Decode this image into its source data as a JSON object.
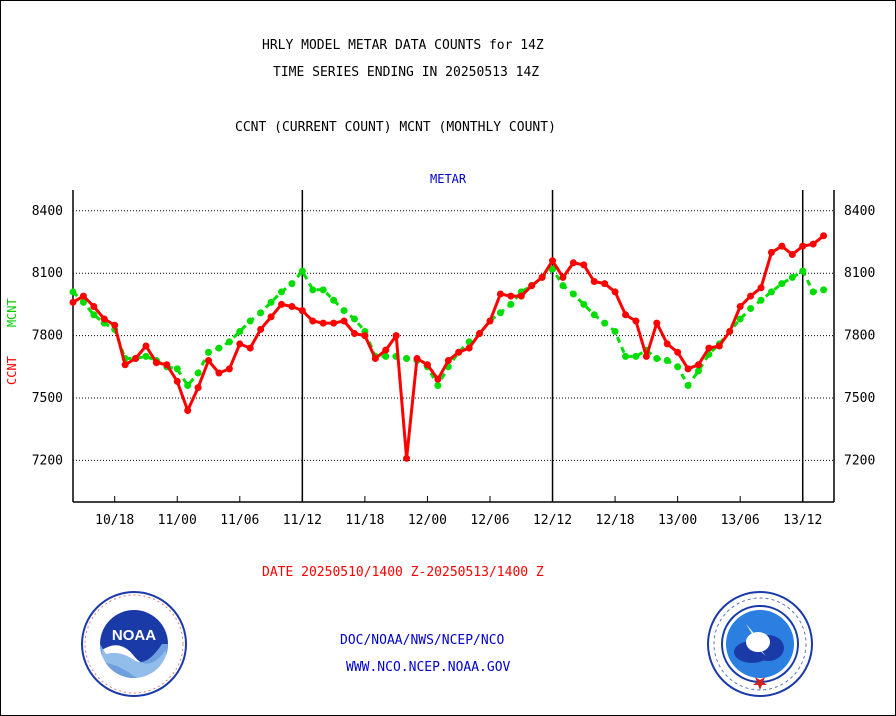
{
  "header": {
    "title_line1": "HRLY MODEL METAR DATA COUNTS for 14Z",
    "title_line2": "TIME SERIES ENDING IN 20250513 14Z",
    "subtitle": "CCNT (CURRENT COUNT) MCNT (MONTHLY COUNT)",
    "panel_label": "METAR"
  },
  "footer": {
    "date_range": "DATE 20250510/1400 Z-20250513/1400 Z",
    "org_path": "DOC/NOAA/NWS/NCEP/NCO",
    "website": "WWW.NCO.NCEP.NOAA.GOV"
  },
  "logos": {
    "left": "NOAA",
    "right": "National Weather Service"
  },
  "colors": {
    "ccnt": "#ff0000",
    "mcnt": "#00dd00",
    "axis_label_ccnt": "#ff0000",
    "axis_label_mcnt": "#00cc00",
    "link": "#0000cc"
  },
  "chart_data": {
    "type": "line",
    "ylabel_ccnt": "CCNT",
    "ylabel_mcnt": "MCNT",
    "ylim": [
      7000,
      8500
    ],
    "yticks": [
      "7200",
      "7500",
      "7800",
      "8100",
      "8400"
    ],
    "xticks": [
      "10/18",
      "11/00",
      "11/06",
      "11/12",
      "11/18",
      "12/00",
      "12/06",
      "12/12",
      "12/18",
      "13/00",
      "13/06",
      "13/12"
    ],
    "xlim": [
      14,
      87
    ],
    "grid": true,
    "series": [
      {
        "name": "CCNT",
        "values": [
          [
            14,
            7960
          ],
          [
            15,
            7990
          ],
          [
            16,
            7940
          ],
          [
            17,
            7880
          ],
          [
            18,
            7850
          ],
          [
            19,
            7660
          ],
          [
            20,
            7690
          ],
          [
            21,
            7750
          ],
          [
            22,
            7670
          ],
          [
            23,
            7660
          ],
          [
            24,
            7580
          ],
          [
            25,
            7440
          ],
          [
            26,
            7550
          ],
          [
            27,
            7680
          ],
          [
            28,
            7620
          ],
          [
            29,
            7640
          ],
          [
            30,
            7760
          ],
          [
            31,
            7740
          ],
          [
            32,
            7830
          ],
          [
            33,
            7890
          ],
          [
            34,
            7950
          ],
          [
            35,
            7940
          ],
          [
            36,
            7920
          ],
          [
            37,
            7870
          ],
          [
            38,
            7860
          ],
          [
            39,
            7860
          ],
          [
            40,
            7870
          ],
          [
            41,
            7810
          ],
          [
            42,
            7800
          ],
          [
            43,
            7690
          ],
          [
            44,
            7730
          ],
          [
            45,
            7800
          ],
          [
            46,
            7210
          ],
          [
            47,
            7690
          ],
          [
            48,
            7660
          ],
          [
            49,
            7590
          ],
          [
            50,
            7680
          ],
          [
            51,
            7720
          ],
          [
            52,
            7740
          ],
          [
            53,
            7810
          ],
          [
            54,
            7870
          ],
          [
            55,
            8000
          ],
          [
            56,
            7990
          ],
          [
            57,
            7990
          ],
          [
            58,
            8040
          ],
          [
            59,
            8080
          ],
          [
            60,
            8160
          ],
          [
            61,
            8080
          ],
          [
            62,
            8150
          ],
          [
            63,
            8140
          ],
          [
            64,
            8060
          ],
          [
            65,
            8050
          ],
          [
            66,
            8010
          ],
          [
            67,
            7900
          ],
          [
            68,
            7870
          ],
          [
            69,
            7700
          ],
          [
            70,
            7860
          ],
          [
            71,
            7760
          ],
          [
            72,
            7720
          ],
          [
            73,
            7640
          ],
          [
            74,
            7660
          ],
          [
            75,
            7740
          ],
          [
            76,
            7750
          ],
          [
            77,
            7820
          ],
          [
            78,
            7940
          ],
          [
            79,
            7990
          ],
          [
            80,
            8030
          ],
          [
            81,
            8200
          ],
          [
            82,
            8230
          ],
          [
            83,
            8190
          ],
          [
            84,
            8230
          ],
          [
            85,
            8240
          ],
          [
            86,
            8280
          ]
        ]
      },
      {
        "name": "MCNT",
        "values": [
          [
            14,
            8010
          ],
          [
            15,
            7960
          ],
          [
            16,
            7900
          ],
          [
            17,
            7860
          ],
          [
            18,
            7830
          ],
          [
            19,
            7690
          ],
          [
            20,
            7690
          ],
          [
            21,
            7700
          ],
          [
            22,
            7680
          ],
          [
            23,
            7650
          ],
          [
            24,
            7640
          ],
          [
            25,
            7560
          ],
          [
            26,
            7620
          ],
          [
            27,
            7720
          ],
          [
            28,
            7740
          ],
          [
            29,
            7770
          ],
          [
            30,
            7820
          ],
          [
            31,
            7870
          ],
          [
            32,
            7910
          ],
          [
            33,
            7960
          ],
          [
            34,
            8010
          ],
          [
            35,
            8050
          ],
          [
            36,
            8110
          ],
          [
            37,
            8020
          ],
          [
            38,
            8020
          ],
          [
            39,
            7970
          ],
          [
            40,
            7920
          ],
          [
            41,
            7880
          ],
          [
            42,
            7820
          ],
          [
            43,
            7700
          ],
          [
            44,
            7700
          ],
          [
            45,
            7700
          ],
          [
            46,
            7690
          ],
          [
            47,
            7680
          ],
          [
            48,
            7650
          ],
          [
            49,
            7560
          ],
          [
            50,
            7650
          ],
          [
            51,
            7720
          ],
          [
            52,
            7770
          ],
          [
            53,
            7810
          ],
          [
            54,
            7870
          ],
          [
            55,
            7910
          ],
          [
            56,
            7950
          ],
          [
            57,
            8010
          ],
          [
            58,
            8040
          ],
          [
            59,
            8080
          ],
          [
            60,
            8120
          ],
          [
            61,
            8040
          ],
          [
            62,
            8000
          ],
          [
            63,
            7950
          ],
          [
            64,
            7900
          ],
          [
            65,
            7860
          ],
          [
            66,
            7820
          ],
          [
            67,
            7700
          ],
          [
            68,
            7700
          ],
          [
            69,
            7730
          ],
          [
            70,
            7690
          ],
          [
            71,
            7680
          ],
          [
            72,
            7650
          ],
          [
            73,
            7560
          ],
          [
            74,
            7630
          ],
          [
            75,
            7710
          ],
          [
            76,
            7760
          ],
          [
            77,
            7820
          ],
          [
            78,
            7880
          ],
          [
            79,
            7930
          ],
          [
            80,
            7970
          ],
          [
            81,
            8010
          ],
          [
            82,
            8050
          ],
          [
            83,
            8080
          ],
          [
            84,
            8110
          ],
          [
            85,
            8010
          ],
          [
            86,
            8020
          ]
        ]
      }
    ],
    "vertical_markers": [
      36,
      60,
      84
    ]
  }
}
